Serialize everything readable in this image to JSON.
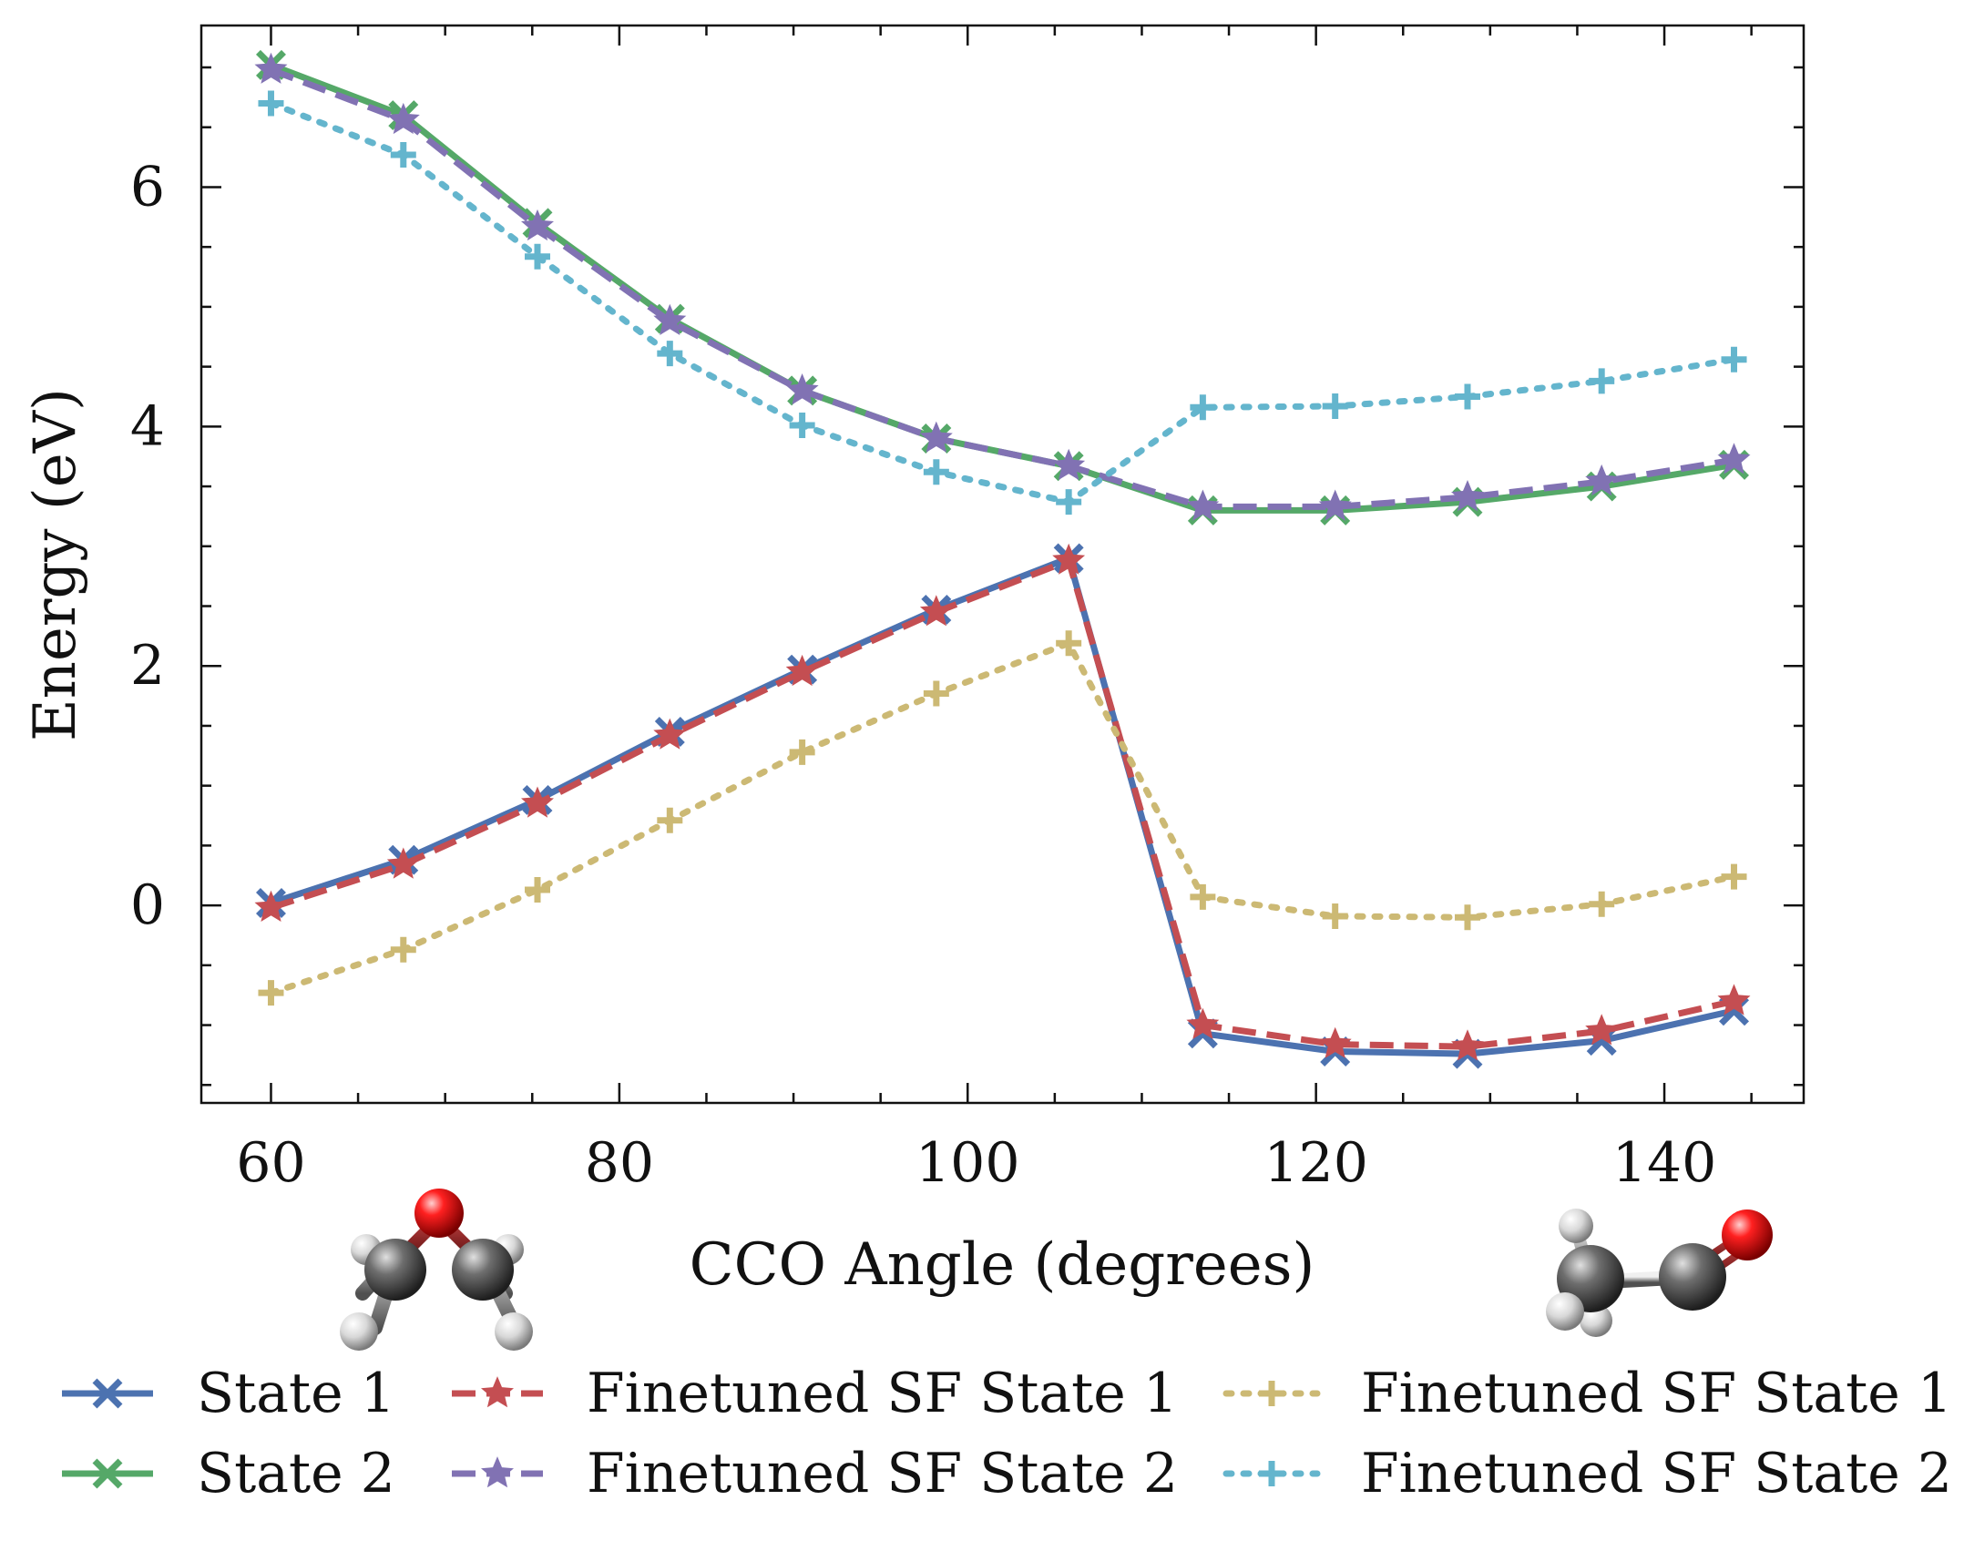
{
  "chart_data": {
    "type": "line",
    "xlabel": "CCO Angle (degrees)",
    "ylabel": "Energy (eV)",
    "xlim": [
      56,
      148
    ],
    "ylim": [
      -1.65,
      7.35
    ],
    "xticks": [
      60,
      80,
      100,
      120,
      140
    ],
    "yticks": [
      0,
      2,
      4,
      6
    ],
    "x": [
      60,
      67.6,
      75.3,
      82.9,
      90.5,
      98.2,
      105.8,
      113.5,
      121.1,
      128.7,
      136.4,
      144
    ],
    "legend_position": "bottom, 3 columns below the axes",
    "grid": false,
    "series": [
      {
        "name": "State 1",
        "color": "#4c72b0",
        "linestyle": "solid",
        "marker": "x",
        "values": [
          0.02,
          0.38,
          0.88,
          1.45,
          1.97,
          2.47,
          2.9,
          -1.07,
          -1.22,
          -1.24,
          -1.13,
          -0.88
        ]
      },
      {
        "name": "State 2",
        "color": "#55a868",
        "linestyle": "solid",
        "marker": "x",
        "values": [
          7.02,
          6.6,
          5.7,
          4.9,
          4.3,
          3.9,
          3.67,
          3.3,
          3.3,
          3.37,
          3.5,
          3.68
        ]
      },
      {
        "name": "Finetuned SF State 1",
        "color": "#c44e52",
        "linestyle": "dashed",
        "marker": "star",
        "values": [
          -0.02,
          0.34,
          0.85,
          1.42,
          1.95,
          2.45,
          2.88,
          -1.0,
          -1.16,
          -1.18,
          -1.05,
          -0.8
        ]
      },
      {
        "name": "Finetuned SF State 2",
        "color": "#8172b3",
        "linestyle": "dashed",
        "marker": "star",
        "values": [
          6.98,
          6.56,
          5.67,
          4.88,
          4.3,
          3.9,
          3.67,
          3.33,
          3.33,
          3.41,
          3.54,
          3.72
        ]
      },
      {
        "name": "Finetuned SF State 1",
        "color": "#ccb974",
        "linestyle": "dotted",
        "marker": "plus",
        "values": [
          -0.73,
          -0.37,
          0.13,
          0.71,
          1.28,
          1.77,
          2.19,
          0.07,
          -0.09,
          -0.1,
          0.01,
          0.24
        ]
      },
      {
        "name": "Finetuned SF State 2",
        "color": "#64b5cd",
        "linestyle": "dotted",
        "marker": "plus",
        "values": [
          6.7,
          6.27,
          5.42,
          4.61,
          4.01,
          3.62,
          3.37,
          4.16,
          4.17,
          4.25,
          4.38,
          4.56
        ]
      }
    ],
    "annotations": [
      {
        "name": "oxirane-molecule-image",
        "position": "below x-axis, left"
      },
      {
        "name": "acetaldehyde-molecule-image",
        "position": "below x-axis, right"
      }
    ]
  }
}
